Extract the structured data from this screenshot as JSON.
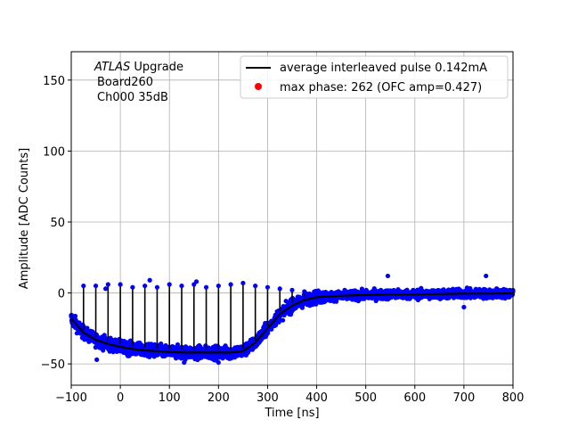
{
  "chart_data": {
    "type": "scatter",
    "xlabel": "Time [ns]",
    "ylabel": "Amplitude [ADC Counts]",
    "xlim": [
      -100,
      800
    ],
    "ylim": [
      -65,
      170
    ],
    "xticks": [
      -100,
      0,
      100,
      200,
      300,
      400,
      500,
      600,
      700,
      800
    ],
    "yticks": [
      -50,
      0,
      50,
      100,
      150
    ],
    "grid": true,
    "legend_position": "top-right",
    "annotation": {
      "line1_italic": "ATLAS",
      "line1_rest": " Upgrade",
      "line2": "Board260",
      "line3": "Ch000 35dB"
    },
    "series": [
      {
        "name": "average interleaved pulse 0.142mA",
        "kind": "line",
        "color": "#000000",
        "x": [
          -100,
          -75,
          -50,
          -25,
          0,
          25,
          50,
          75,
          100,
          125,
          150,
          175,
          200,
          225,
          250,
          275,
          300,
          325,
          350,
          375,
          400,
          450,
          500,
          550,
          600,
          650,
          700,
          750,
          800
        ],
        "y": [
          -18,
          -28,
          -33,
          -36,
          -38,
          -39.5,
          -40.5,
          -41,
          -41.5,
          -42,
          -42,
          -42,
          -42,
          -42,
          -41,
          -35,
          -25,
          -15,
          -9,
          -5,
          -3,
          -2,
          -1.5,
          -1,
          -1,
          -0.8,
          -0.5,
          -0.5,
          -0.3
        ]
      },
      {
        "name": "max phase: 262 (OFC amp=0.427)",
        "kind": "scatter",
        "color": "#ff0000"
      }
    ],
    "scatter_color": "#0000ff",
    "spike_x": [
      -75,
      -50,
      -25,
      0,
      25,
      50,
      75,
      100,
      125,
      150,
      175,
      200,
      225,
      250,
      275,
      300,
      325,
      350,
      375,
      400,
      425,
      450
    ],
    "spike_top_y": [
      5,
      5,
      6,
      6,
      4,
      5,
      4,
      6,
      5,
      6,
      4,
      5,
      6,
      7,
      5,
      4,
      3,
      2,
      1,
      0,
      -1,
      -1
    ]
  }
}
